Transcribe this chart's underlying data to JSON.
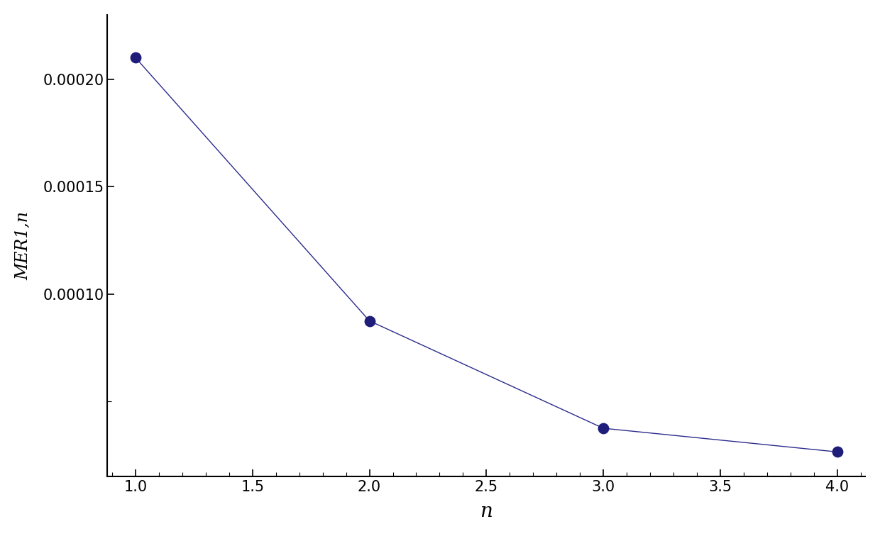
{
  "x": [
    1,
    2,
    3,
    4
  ],
  "y": [
    0.00021,
    8.75e-05,
    3.75e-05,
    2.65e-05
  ],
  "line_color": "#2B2B8C",
  "marker_color": "#1E1E7A",
  "marker_size": 130,
  "line_width": 1.0,
  "xlabel": "n",
  "ylabel": "MER1,n",
  "xlim": [
    0.88,
    4.12
  ],
  "ylim": [
    1.5e-05,
    0.00023
  ],
  "xticks": [
    1.0,
    1.5,
    2.0,
    2.5,
    3.0,
    3.5,
    4.0
  ],
  "yticks": [
    0.0001,
    0.00015,
    0.0002
  ],
  "background_color": "#FFFFFF",
  "title": ""
}
